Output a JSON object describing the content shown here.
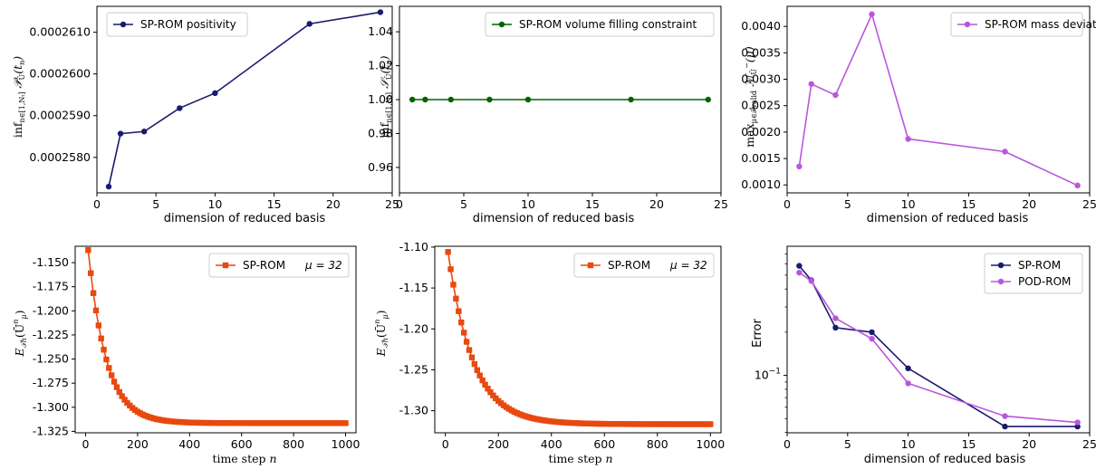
{
  "figure": {
    "colors": {
      "navy": "#1a1a6e",
      "green": "#006400",
      "purple": "#bb55dd",
      "orange": "#e8490f"
    }
  },
  "chart_data": [
    {
      "id": "positivity",
      "type": "line",
      "xlabel": "dimension of reduced basis",
      "ylabel": "inf_{n∈[1,N_t]} P_Ū(t_n)",
      "xlim": [
        0,
        25
      ],
      "ylim": [
        0.00025715,
        0.00026162
      ],
      "xticks": [
        0,
        5,
        10,
        15,
        20,
        25
      ],
      "xtick_labels": [
        "0",
        "5",
        "10",
        "15",
        "20",
        "25"
      ],
      "yticks": [
        0.000258,
        0.000259,
        0.00026,
        0.000261
      ],
      "ytick_labels": [
        "0.0002580",
        "0.0002590",
        "0.0002600",
        "0.0002610"
      ],
      "legend_position": "top-left",
      "grid": false,
      "series": [
        {
          "name": "SP-ROM positivity",
          "color": "#1a1a6e",
          "marker": "circle",
          "x": [
            1,
            2,
            4,
            7,
            10,
            18,
            24
          ],
          "y": [
            0.0002573,
            0.00025857,
            0.00025862,
            0.00025918,
            0.00025954,
            0.0002612,
            0.00026148
          ]
        }
      ]
    },
    {
      "id": "volume",
      "type": "line",
      "xlabel": "dimension of reduced basis",
      "ylabel": "inf_{n∈[1,N_t]} S_Ū(t_n)",
      "xlim": [
        0,
        25
      ],
      "ylim": [
        0.945,
        1.055
      ],
      "xticks": [
        0,
        5,
        10,
        15,
        20,
        25
      ],
      "xtick_labels": [
        "0",
        "5",
        "10",
        "15",
        "20",
        "25"
      ],
      "yticks": [
        0.96,
        0.98,
        1.0,
        1.02,
        1.04
      ],
      "ytick_labels": [
        "0.96",
        "0.98",
        "1.00",
        "1.02",
        "1.04"
      ],
      "legend_position": "top-right",
      "grid": false,
      "series": [
        {
          "name": "SP-ROM volume filling constraint",
          "color": "#006400",
          "marker": "circle",
          "x": [
            1,
            2,
            4,
            7,
            10,
            18,
            24
          ],
          "y": [
            1.0,
            1.0,
            1.0,
            1.0,
            1.0,
            1.0,
            1.0
          ]
        }
      ]
    },
    {
      "id": "mass",
      "type": "line",
      "xlabel": "dimension of reduced basis",
      "ylabel": "max_{μ∈P_valid} M_Ū^−(μ)",
      "xlim": [
        0,
        25
      ],
      "ylim": [
        0.00085,
        0.00438
      ],
      "xticks": [
        0,
        5,
        10,
        15,
        20,
        25
      ],
      "xtick_labels": [
        "0",
        "5",
        "10",
        "15",
        "20",
        "25"
      ],
      "yticks": [
        0.001,
        0.0015,
        0.002,
        0.0025,
        0.003,
        0.0035,
        0.004
      ],
      "ytick_labels": [
        "0.0010",
        "0.0015",
        "0.0020",
        "0.0025",
        "0.0030",
        "0.0035",
        "0.0040"
      ],
      "legend_position": "top-right",
      "grid": false,
      "series": [
        {
          "name": "SP-ROM mass deviation",
          "color": "#bb55dd",
          "marker": "circle",
          "x": [
            1,
            2,
            4,
            7,
            10,
            18,
            24
          ],
          "y": [
            0.00135,
            0.00291,
            0.0027,
            0.00423,
            0.00187,
            0.00163,
            0.00099
          ]
        }
      ]
    },
    {
      "id": "energy1",
      "type": "line",
      "xlabel": "time step n",
      "ylabel": "E_{T_h}(Ū^n_μ)",
      "xlim": [
        -40,
        1040
      ],
      "ylim": [
        -1.3265,
        -1.133
      ],
      "xticks": [
        0,
        200,
        400,
        600,
        800,
        1000
      ],
      "xtick_labels": [
        "0",
        "200",
        "400",
        "600",
        "800",
        "1000"
      ],
      "yticks": [
        -1.15,
        -1.175,
        -1.2,
        -1.225,
        -1.25,
        -1.275,
        -1.3,
        -1.325
      ],
      "ytick_labels": [
        "-1.150",
        "-1.175",
        "-1.200",
        "-1.225",
        "-1.250",
        "-1.275",
        "-1.300",
        "-1.325"
      ],
      "legend_position": "top-right",
      "legend_label": "SP-ROM",
      "legend_param": "μ = 32",
      "grid": false,
      "series": [
        {
          "name": "SP-ROM",
          "color": "#e8490f",
          "marker": "square",
          "model": "exponential decay",
          "x_start": 10,
          "x_end": 1000,
          "x_step": 10,
          "y_first": -1.137,
          "y_final": -1.3165,
          "decay_length": 70
        }
      ]
    },
    {
      "id": "energy2",
      "type": "line",
      "xlabel": "time step n",
      "ylabel": "E_{T_h}(Ū^n_μ)",
      "xlim": [
        -40,
        1040
      ],
      "ylim": [
        -1.327,
        -1.099
      ],
      "xticks": [
        0,
        200,
        400,
        600,
        800,
        1000
      ],
      "xtick_labels": [
        "0",
        "200",
        "400",
        "600",
        "800",
        "1000"
      ],
      "yticks": [
        -1.1,
        -1.15,
        -1.2,
        -1.25,
        -1.3
      ],
      "ytick_labels": [
        "-1.10",
        "-1.15",
        "-1.20",
        "-1.25",
        "-1.30"
      ],
      "legend_position": "top-right",
      "legend_label": "SP-ROM",
      "legend_param": "μ = 32",
      "grid": false,
      "series": [
        {
          "name": "SP-ROM",
          "color": "#e8490f",
          "marker": "square",
          "model": "exponential decay",
          "x_start": 10,
          "x_end": 1000,
          "x_step": 10,
          "y_first": -1.106,
          "y_final": -1.3165,
          "decay_length": 95
        }
      ]
    },
    {
      "id": "error",
      "type": "line",
      "xlabel": "dimension of reduced basis",
      "ylabel": "Error",
      "log_y": true,
      "xlim": [
        0,
        25
      ],
      "ylim": [
        0.0398,
        0.7943
      ],
      "xticks": [
        0,
        5,
        10,
        15,
        20,
        25
      ],
      "xtick_labels": [
        "0",
        "5",
        "10",
        "15",
        "20",
        "25"
      ],
      "yticks": [
        0.1
      ],
      "ytick_labels": [
        "10"
      ],
      "ytick_exponents": [
        "−1"
      ],
      "legend_position": "top-right",
      "grid": false,
      "series": [
        {
          "name": "SP-ROM",
          "color": "#1a1a6e",
          "marker": "circle",
          "x": [
            1,
            2,
            4,
            7,
            10,
            18,
            24
          ],
          "y": [
            0.58,
            0.46,
            0.215,
            0.2,
            0.112,
            0.044,
            0.044
          ]
        },
        {
          "name": "POD-ROM",
          "color": "#bb55dd",
          "marker": "circle",
          "x": [
            1,
            2,
            4,
            7,
            10,
            18,
            24
          ],
          "y": [
            0.52,
            0.455,
            0.25,
            0.18,
            0.088,
            0.052,
            0.047
          ]
        }
      ]
    }
  ]
}
